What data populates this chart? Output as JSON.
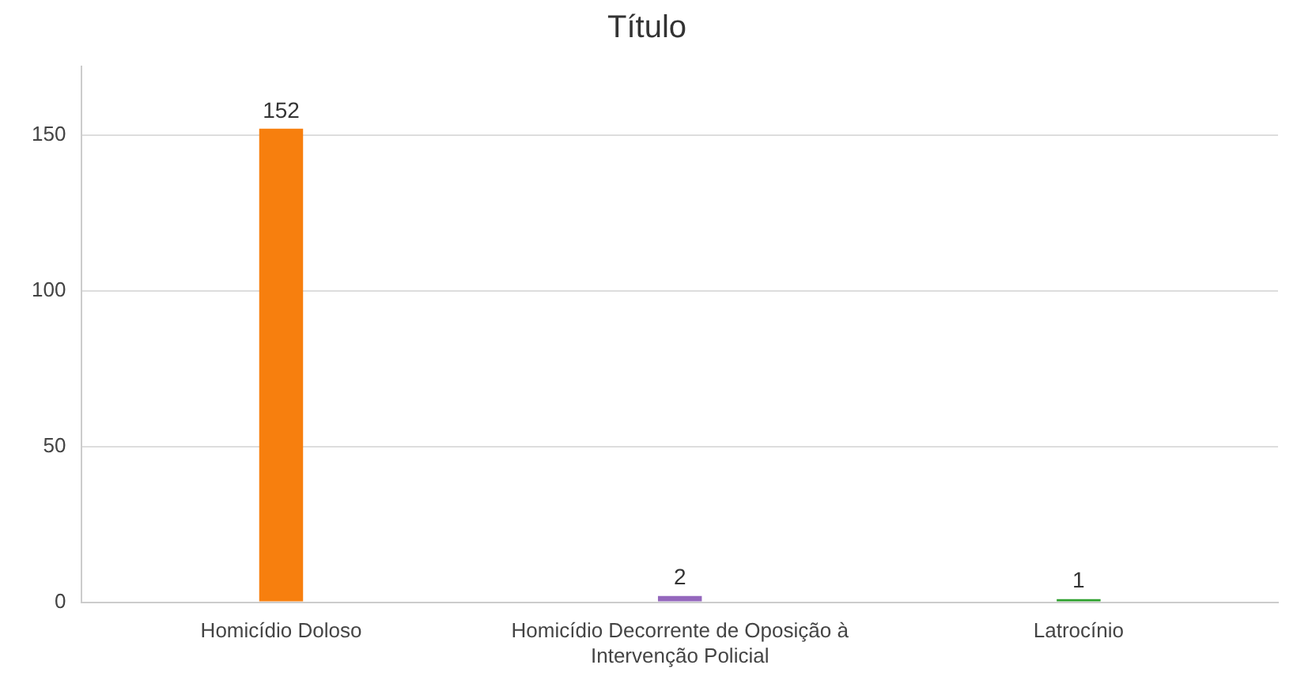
{
  "chart_data": {
    "type": "bar",
    "title": "Título",
    "categories": [
      "Homicídio Doloso",
      "Homicídio Decorrente de Oposição à Intervenção Policial",
      "Latrocínio"
    ],
    "values": [
      152,
      2,
      1
    ],
    "colors": [
      "#f77f0e",
      "#9467bd",
      "#2ca02c"
    ],
    "ylim": [
      0,
      172
    ],
    "yticks": [
      0,
      50,
      100,
      150
    ],
    "grid": "y",
    "legend": false,
    "data_labels": true
  }
}
